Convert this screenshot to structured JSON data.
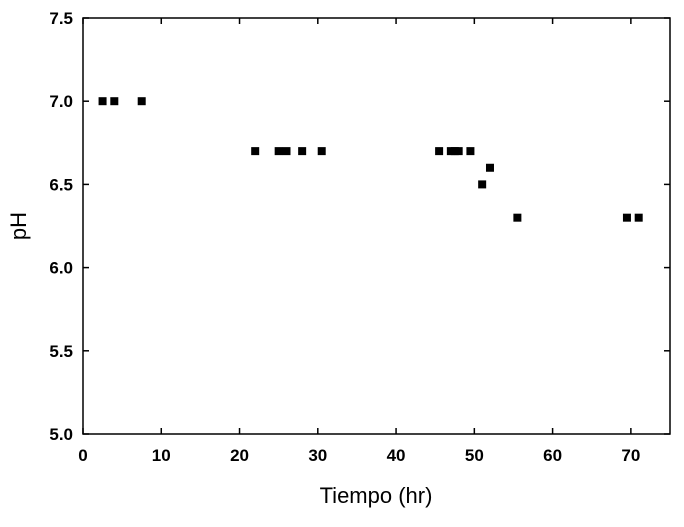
{
  "chart_data": {
    "type": "scatter",
    "title": "",
    "xlabel": "Tiempo (hr)",
    "ylabel": "pH",
    "xlim": [
      0,
      75
    ],
    "ylim": [
      5.0,
      7.5
    ],
    "xticks": [
      0,
      10,
      20,
      30,
      40,
      50,
      60,
      70
    ],
    "yticks": [
      5.0,
      5.5,
      6.0,
      6.5,
      7.0,
      7.5
    ],
    "xtick_labels": [
      "0",
      "10",
      "20",
      "30",
      "40",
      "50",
      "60",
      "70"
    ],
    "ytick_labels": [
      "5.0",
      "5.5",
      "6.0",
      "6.5",
      "7.0",
      "7.5"
    ],
    "grid": false,
    "legend": "none",
    "marker": "square",
    "marker_color": "#000000",
    "series": [
      {
        "points": [
          [
            2.5,
            7.0
          ],
          [
            4.0,
            7.0
          ],
          [
            7.5,
            7.0
          ],
          [
            22.0,
            6.7
          ],
          [
            25.0,
            6.7
          ],
          [
            26.0,
            6.7
          ],
          [
            28.0,
            6.7
          ],
          [
            30.5,
            6.7
          ],
          [
            45.5,
            6.7
          ],
          [
            47.0,
            6.7
          ],
          [
            47.5,
            6.7
          ],
          [
            48.0,
            6.7
          ],
          [
            49.5,
            6.7
          ],
          [
            51.0,
            6.5
          ],
          [
            52.0,
            6.6
          ],
          [
            55.5,
            6.3
          ],
          [
            69.5,
            6.3
          ],
          [
            71.0,
            6.3
          ]
        ]
      }
    ]
  }
}
